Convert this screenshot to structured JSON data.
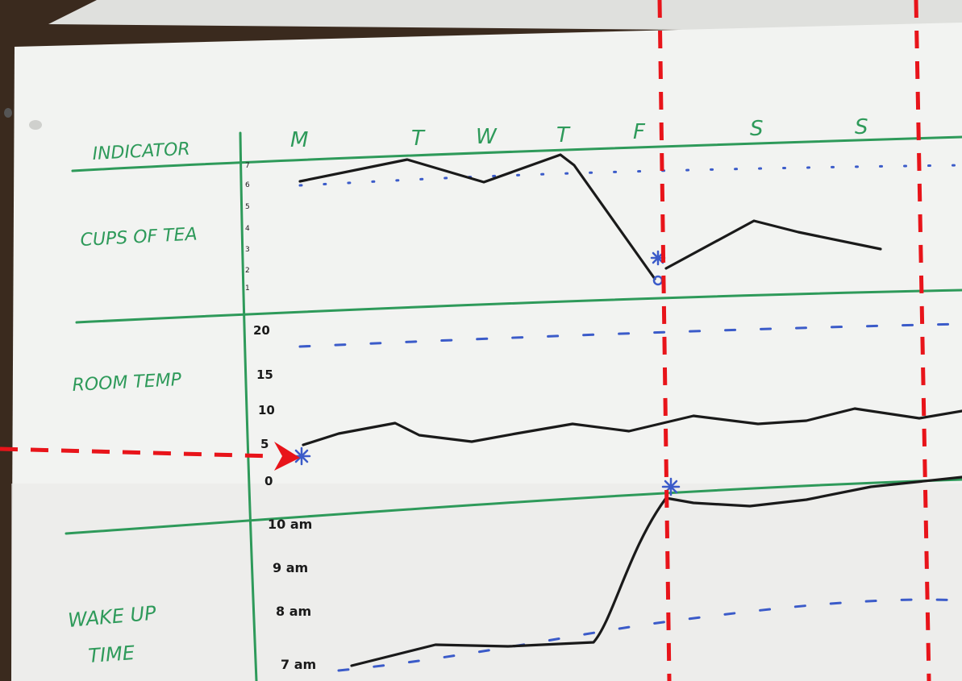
{
  "sheet": {
    "header_label": "INDICATOR",
    "day_labels": [
      "M",
      "T",
      "W",
      "T",
      "F",
      "S",
      "S"
    ],
    "rows": [
      {
        "label": "CUPS OF TEA",
        "scale": [
          "7",
          "6",
          "5",
          "4",
          "3",
          "2",
          "1"
        ]
      },
      {
        "label": "ROOM TEMP",
        "scale": [
          "20",
          "15",
          "10",
          "5",
          "0"
        ]
      },
      {
        "label_lines": [
          "WAKE UP",
          "TIME"
        ],
        "scale": [
          "10 am",
          "9 am",
          "8 am",
          "7 am"
        ]
      }
    ]
  },
  "colors": {
    "paper": "#f2f3f1",
    "desk": "#3a2a1e",
    "grid_green": "#2e9a5a",
    "ink_black": "#1a1a1a",
    "ink_blue": "#3b5bc9",
    "annotation_red": "#e8141a"
  },
  "annotations": {
    "marker_icon": "asterisk-marker",
    "arrow_icon": "red-dashed-arrow"
  }
}
